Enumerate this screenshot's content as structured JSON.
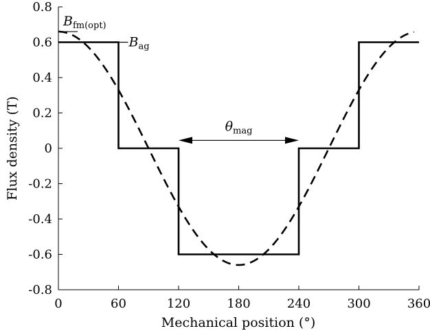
{
  "chart_data": {
    "type": "line",
    "xlabel": "Mechanical position (°)",
    "ylabel": "Flux density (T)",
    "xlim": [
      0,
      360
    ],
    "ylim": [
      -0.8,
      0.8
    ],
    "xticks": [
      0,
      60,
      120,
      180,
      240,
      300,
      360
    ],
    "yticks": [
      0.8,
      0.6,
      0.4,
      0.2,
      0,
      -0.2,
      -0.4,
      -0.6,
      -0.8
    ],
    "xtick_labels": [
      "0",
      "60",
      "120",
      "180",
      "240",
      "300",
      "360"
    ],
    "ytick_labels": [
      "0.8",
      "0.6",
      "0.4",
      "0.2",
      "0",
      "-0.2",
      "-0.4",
      "-0.6",
      "-0.8"
    ],
    "grid": false,
    "series": [
      {
        "style": "solid",
        "x": [
          0,
          60,
          60,
          120,
          120,
          240,
          240,
          300,
          300,
          360
        ],
        "y": [
          0.6,
          0.6,
          0,
          0,
          -0.6,
          -0.6,
          0,
          0,
          0.6,
          0.6
        ]
      },
      {
        "style": "dashed",
        "function": "cosine",
        "amplitude": 0.66,
        "period": 360,
        "x_range": [
          0,
          355
        ]
      }
    ],
    "annotations": {
      "bfm": {
        "main": "B",
        "sub": "fm(opt)",
        "y": 0.66
      },
      "bag": {
        "main": "B",
        "sub": "ag",
        "y": 0.6
      },
      "theta": {
        "main": "θ",
        "sub": "mag",
        "x_from": 120,
        "x_to": 240,
        "y": 0.045
      }
    }
  }
}
